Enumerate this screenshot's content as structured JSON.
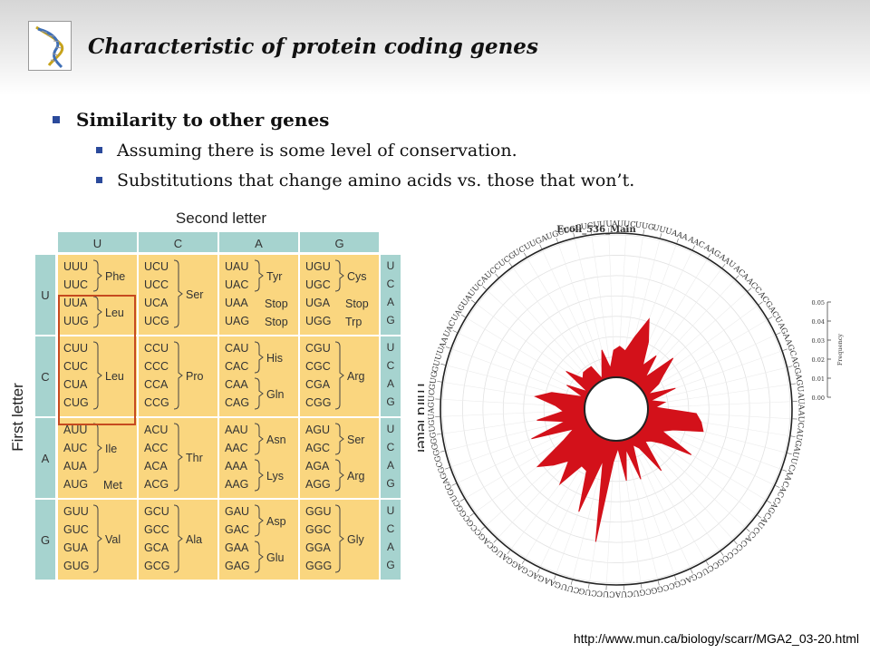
{
  "slide": {
    "title": "Characteristic of protein coding genes",
    "bullet_main": "Similarity to other genes",
    "sub_bullets": [
      "Assuming there is some level of conservation.",
      "Substitutions that change amino acids vs. those that won’t."
    ],
    "source_url": "http://www.mun.ca/biology/scarr/MGA2_03-20.html"
  },
  "colors": {
    "table_cell": "#fad67f",
    "table_header": "#a6d3cf",
    "highlight_box": "#c64a1f",
    "radar_fill": "#d3111a",
    "bullet": "#2b4a9b"
  },
  "codon_table": {
    "second_letter_label": "Second letter",
    "first_letter_label": "First letter",
    "third_letter_label": "Third letter",
    "second_letters": [
      "U",
      "C",
      "A",
      "G"
    ],
    "first_letters": [
      "U",
      "C",
      "A",
      "G"
    ],
    "third_letters": [
      "U",
      "C",
      "A",
      "G"
    ],
    "cells": [
      [
        {
          "codons": [
            "UUU",
            "UUC",
            "UUA",
            "UUG"
          ],
          "aa": [
            "Phe",
            "Leu"
          ],
          "groups": [
            [
              0,
              1
            ],
            [
              2,
              3
            ]
          ]
        },
        {
          "codons": [
            "UCU",
            "UCC",
            "UCA",
            "UCG"
          ],
          "aa": [
            "Ser"
          ],
          "groups": [
            [
              0,
              3
            ]
          ]
        },
        {
          "codons": [
            "UAU",
            "UAC",
            "UAA",
            "UAG"
          ],
          "aa": [
            "Tyr",
            "Stop",
            "Stop"
          ],
          "groups": [
            [
              0,
              1
            ],
            [
              2,
              2
            ],
            [
              3,
              3
            ]
          ]
        },
        {
          "codons": [
            "UGU",
            "UGC",
            "UGA",
            "UGG"
          ],
          "aa": [
            "Cys",
            "Stop",
            "Trp"
          ],
          "groups": [
            [
              0,
              1
            ],
            [
              2,
              2
            ],
            [
              3,
              3
            ]
          ]
        }
      ],
      [
        {
          "codons": [
            "CUU",
            "CUC",
            "CUA",
            "CUG"
          ],
          "aa": [
            "Leu"
          ],
          "groups": [
            [
              0,
              3
            ]
          ]
        },
        {
          "codons": [
            "CCU",
            "CCC",
            "CCA",
            "CCG"
          ],
          "aa": [
            "Pro"
          ],
          "groups": [
            [
              0,
              3
            ]
          ]
        },
        {
          "codons": [
            "CAU",
            "CAC",
            "CAA",
            "CAG"
          ],
          "aa": [
            "His",
            "Gln"
          ],
          "groups": [
            [
              0,
              1
            ],
            [
              2,
              3
            ]
          ]
        },
        {
          "codons": [
            "CGU",
            "CGC",
            "CGA",
            "CGG"
          ],
          "aa": [
            "Arg"
          ],
          "groups": [
            [
              0,
              3
            ]
          ]
        }
      ],
      [
        {
          "codons": [
            "AUU",
            "AUC",
            "AUA",
            "AUG"
          ],
          "aa": [
            "Ile",
            "Met"
          ],
          "groups": [
            [
              0,
              2
            ],
            [
              3,
              3
            ]
          ]
        },
        {
          "codons": [
            "ACU",
            "ACC",
            "ACA",
            "ACG"
          ],
          "aa": [
            "Thr"
          ],
          "groups": [
            [
              0,
              3
            ]
          ]
        },
        {
          "codons": [
            "AAU",
            "AAC",
            "AAA",
            "AAG"
          ],
          "aa": [
            "Asn",
            "Lys"
          ],
          "groups": [
            [
              0,
              1
            ],
            [
              2,
              3
            ]
          ]
        },
        {
          "codons": [
            "AGU",
            "AGC",
            "AGA",
            "AGG"
          ],
          "aa": [
            "Ser",
            "Arg"
          ],
          "groups": [
            [
              0,
              1
            ],
            [
              2,
              3
            ]
          ]
        }
      ],
      [
        {
          "codons": [
            "GUU",
            "GUC",
            "GUA",
            "GUG"
          ],
          "aa": [
            "Val"
          ],
          "groups": [
            [
              0,
              3
            ]
          ]
        },
        {
          "codons": [
            "GCU",
            "GCC",
            "GCA",
            "GCG"
          ],
          "aa": [
            "Ala"
          ],
          "groups": [
            [
              0,
              3
            ]
          ]
        },
        {
          "codons": [
            "GAU",
            "GAC",
            "GAA",
            "GAG"
          ],
          "aa": [
            "Asp",
            "Glu"
          ],
          "groups": [
            [
              0,
              1
            ],
            [
              2,
              3
            ]
          ]
        },
        {
          "codons": [
            "GGU",
            "GGC",
            "GGA",
            "GGG"
          ],
          "aa": [
            "Gly"
          ],
          "groups": [
            [
              0,
              3
            ]
          ]
        }
      ]
    ],
    "highlight": "Leu codons (UUA, UUG, CUU, CUC, CUA, CUG)"
  },
  "radar": {
    "title": "Ecoli_536_Main",
    "codons": [
      "AAA",
      "AAC",
      "AAG",
      "AAU",
      "ACA",
      "ACC",
      "ACG",
      "ACU",
      "AGA",
      "AGC",
      "AGG",
      "AGU",
      "AUA",
      "AUC",
      "AUG",
      "AUU",
      "CAA",
      "CAC",
      "CAG",
      "CAU",
      "CCA",
      "CCC",
      "CCG",
      "CCU",
      "CGA",
      "CGC",
      "CGG",
      "CGU",
      "CUA",
      "CUC",
      "CUG",
      "CUU",
      "GAA",
      "GAC",
      "GAG",
      "GAU",
      "GCA",
      "GCC",
      "GCG",
      "GCU",
      "GGA",
      "GGC",
      "GGG",
      "GGU",
      "GUA",
      "GUC",
      "GUG",
      "GUU",
      "UAA",
      "UAC",
      "UAG",
      "UAU",
      "UCA",
      "UCC",
      "UCG",
      "UCU",
      "UGA",
      "UGC",
      "UGG",
      "UGU",
      "UUA",
      "UUC",
      "UUG",
      "UUU"
    ],
    "frequency_label": "Frequency",
    "scale_ticks": [
      "0.05",
      "0.04",
      "0.03",
      "0.02",
      "0.01",
      "0.00"
    ]
  },
  "chart_data": {
    "type": "radar",
    "title": "Ecoli_536_Main",
    "ylabel": "Frequency",
    "ylim": [
      0,
      0.05
    ],
    "categories": [
      "AAA",
      "AAC",
      "AAG",
      "AAU",
      "ACA",
      "ACC",
      "ACG",
      "ACU",
      "AGA",
      "AGC",
      "AGG",
      "AGU",
      "AUA",
      "AUC",
      "AUG",
      "AUU",
      "CAA",
      "CAC",
      "CAG",
      "CAU",
      "CCA",
      "CCC",
      "CCG",
      "CCU",
      "CGA",
      "CGC",
      "CGG",
      "CGU",
      "CUA",
      "CUC",
      "CUG",
      "CUU",
      "GAA",
      "GAC",
      "GAG",
      "GAU",
      "GCA",
      "GCC",
      "GCG",
      "GCU",
      "GGA",
      "GGC",
      "GGG",
      "GGU",
      "GUA",
      "GUC",
      "GUG",
      "GUU",
      "UAA",
      "UAC",
      "UAG",
      "UAU",
      "UCA",
      "UCC",
      "UCG",
      "UCU",
      "UGA",
      "UGC",
      "UGG",
      "UGU",
      "UUA",
      "UUC",
      "UUG",
      "UUU"
    ],
    "values": [
      0.033,
      0.022,
      0.01,
      0.018,
      0.006,
      0.023,
      0.014,
      0.009,
      0.002,
      0.016,
      0.002,
      0.009,
      0.004,
      0.025,
      0.028,
      0.03,
      0.015,
      0.01,
      0.029,
      0.013,
      0.008,
      0.006,
      0.023,
      0.007,
      0.004,
      0.022,
      0.005,
      0.021,
      0.004,
      0.011,
      0.053,
      0.011,
      0.04,
      0.019,
      0.018,
      0.032,
      0.02,
      0.027,
      0.034,
      0.015,
      0.008,
      0.03,
      0.011,
      0.025,
      0.011,
      0.015,
      0.026,
      0.018,
      0.002,
      0.012,
      0.001,
      0.016,
      0.007,
      0.009,
      0.009,
      0.009,
      0.001,
      0.006,
      0.015,
      0.005,
      0.014,
      0.016,
      0.014,
      0.022
    ]
  }
}
